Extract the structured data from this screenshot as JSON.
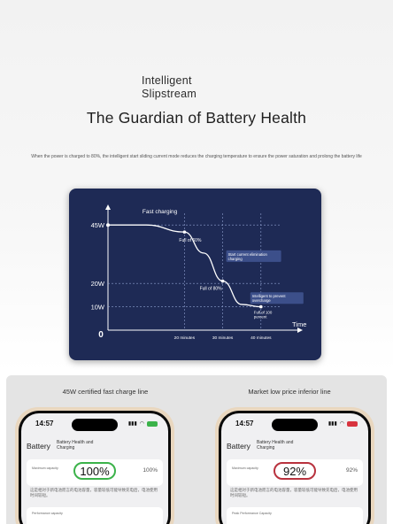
{
  "header": {
    "brand_line1": "Intelligent",
    "brand_line2": "Slipstream",
    "title": "The Guardian of Battery Health",
    "subtitle": "When the power is charged to 80%, the intelligent start sliding current mode reduces the charging temperature to ensure the power saturation and prolong the battery life"
  },
  "chart_data": {
    "type": "line",
    "title": "Fast charging",
    "xlabel": "Time",
    "ylabel": "",
    "origin_label": "0",
    "y_ticks": [
      "45W",
      "20W",
      "10W"
    ],
    "x_ticks": [
      "20 minutes",
      "30 minutes",
      "40 minutes"
    ],
    "x": [
      0,
      10,
      20,
      25,
      30,
      35,
      40
    ],
    "y": [
      45,
      45,
      42,
      33,
      21,
      11,
      10
    ],
    "annotations": [
      {
        "text": "Full of 60%",
        "x": 20
      },
      {
        "text": "Start current elimination charging",
        "x": 30
      },
      {
        "text": "Full of 80%",
        "x": 30
      },
      {
        "text": "Intelligent to prevent overcharge",
        "x": 40
      },
      {
        "text": "Full of 100 percent",
        "x": 40
      }
    ],
    "colors": {
      "background": "#1e2a55",
      "line": "#ffffff",
      "label_box": "#3c4f8a"
    }
  },
  "comparison": {
    "left": {
      "caption": "45W certified fast charge line",
      "time": "14:57",
      "back_label": "Battery",
      "nav_title": "Battery Health and Charging",
      "capacity_label": "Maximum capacity",
      "percent": "100%",
      "percent_side": "100%",
      "note": "这是相对于新电池而言的电池容量，容量较低可能导致充电后，电池使用时间较短。",
      "card2_label": "Performance capacity",
      "pill_color": "#3bb24a",
      "battery_color": "#3bb24a"
    },
    "right": {
      "caption": "Market low price inferior line",
      "time": "14:57",
      "back_label": "Battery",
      "nav_title": "Battery Health and Charging",
      "capacity_label": "Maximum capacity",
      "percent": "92%",
      "percent_side": "92%",
      "note": "这是相对于新电池而言的电池容量，容量较低可能导致充电后，电池使用时间较短。",
      "card2_label": "Peak Performance Capacity",
      "pill_color": "#b8323e",
      "battery_color": "#d8343f"
    }
  }
}
